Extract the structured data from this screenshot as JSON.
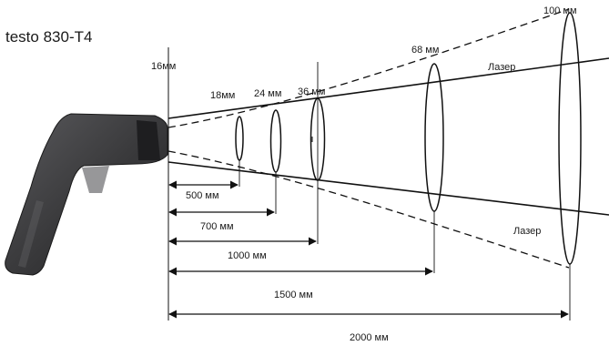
{
  "title": "testo 830-T4",
  "aperture_label": "16мм",
  "spot_labels": {
    "s500": "18мм",
    "s700": "24 мм",
    "s1000": "36 мм",
    "s1500": "68 мм",
    "s2000": "100 мм"
  },
  "distance_labels": {
    "d500": "500 мм",
    "d700": "700 мм",
    "d1000": "1000 мм",
    "d1500": "1500 мм",
    "d2000": "2000 мм"
  },
  "laser_label_top": "Лазер",
  "laser_label_bottom": "Лазер",
  "colors": {
    "line": "#111111",
    "device_body": "#3a3a3c",
    "device_dark": "#1e1e20",
    "device_highlight": "#6b6b6e"
  }
}
